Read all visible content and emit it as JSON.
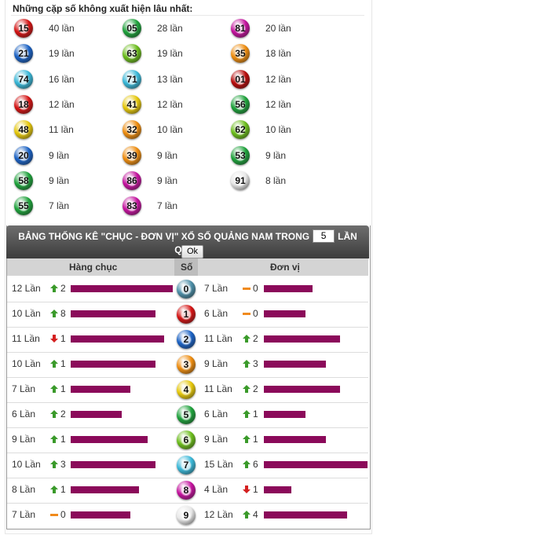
{
  "top": {
    "title": "Những cặp số không xuất hiện lâu nhất:",
    "items": [
      {
        "number": "15",
        "count": "40 lần",
        "color": "#d41414"
      },
      {
        "number": "05",
        "count": "28 lần",
        "color": "#1fa23c"
      },
      {
        "number": "81",
        "count": "20 lần",
        "color": "#c4139e"
      },
      {
        "number": "21",
        "count": "19 lần",
        "color": "#1b62c4"
      },
      {
        "number": "63",
        "count": "19 lần",
        "color": "#6cbd1c"
      },
      {
        "number": "35",
        "count": "18 lần",
        "color": "#ee8d10"
      },
      {
        "number": "74",
        "count": "16 lần",
        "color": "#3ab8d8"
      },
      {
        "number": "71",
        "count": "13 lần",
        "color": "#3ab8d8"
      },
      {
        "number": "01",
        "count": "12 lần",
        "color": "#b70b0b"
      },
      {
        "number": "18",
        "count": "12 lần",
        "color": "#d41414"
      },
      {
        "number": "41",
        "count": "12 lần",
        "color": "#e6c80c"
      },
      {
        "number": "56",
        "count": "12 lần",
        "color": "#1fa23c"
      },
      {
        "number": "48",
        "count": "11 lần",
        "color": "#e6c80c"
      },
      {
        "number": "32",
        "count": "10 lần",
        "color": "#ee8d10"
      },
      {
        "number": "62",
        "count": "10 lần",
        "color": "#6cbd1c"
      },
      {
        "number": "20",
        "count": "9 lần",
        "color": "#1b62c4"
      },
      {
        "number": "39",
        "count": "9 lần",
        "color": "#ee8d10"
      },
      {
        "number": "53",
        "count": "9 lần",
        "color": "#1fa23c"
      },
      {
        "number": "58",
        "count": "9 lần",
        "color": "#1fa23c"
      },
      {
        "number": "86",
        "count": "9 lần",
        "color": "#c4139e"
      },
      {
        "number": "91",
        "count": "8 lần",
        "color": "#e8e8e8"
      },
      {
        "number": "55",
        "count": "7 lần",
        "color": "#1fa23c"
      },
      {
        "number": "83",
        "count": "7 lần",
        "color": "#c4139e"
      }
    ]
  },
  "stats": {
    "title": "BẢNG THỐNG KÊ \"CHỤC - ĐƠN VỊ\" XỔ SỐ QUẢNG NAM TRONG",
    "draws": "5",
    "title_end": "LẦN QUAY",
    "button": "Ok",
    "columns": [
      "Hàng chục",
      "Số",
      "Đơn vị"
    ],
    "rows": [
      {
        "digit": "0",
        "color": "#4d8fa8",
        "chuc": {
          "count": 12,
          "label": "12 Lần",
          "trend": "up",
          "change": "2"
        },
        "donvi": {
          "count": 7,
          "label": "7 Lần",
          "trend": "flat",
          "change": "0"
        }
      },
      {
        "digit": "1",
        "color": "#d41414",
        "chuc": {
          "count": 10,
          "label": "10 Lần",
          "trend": "up",
          "change": "8"
        },
        "donvi": {
          "count": 6,
          "label": "6 Lần",
          "trend": "flat",
          "change": "0"
        }
      },
      {
        "digit": "2",
        "color": "#1b62c4",
        "chuc": {
          "count": 11,
          "label": "11 Lần",
          "trend": "down",
          "change": "1"
        },
        "donvi": {
          "count": 11,
          "label": "11 Lần",
          "trend": "up",
          "change": "2"
        }
      },
      {
        "digit": "3",
        "color": "#ee8d10",
        "chuc": {
          "count": 10,
          "label": "10 Lần",
          "trend": "up",
          "change": "1"
        },
        "donvi": {
          "count": 9,
          "label": "9 Lần",
          "trend": "up",
          "change": "3"
        }
      },
      {
        "digit": "4",
        "color": "#e6c80c",
        "chuc": {
          "count": 7,
          "label": "7 Lần",
          "trend": "up",
          "change": "1"
        },
        "donvi": {
          "count": 11,
          "label": "11 Lần",
          "trend": "up",
          "change": "2"
        }
      },
      {
        "digit": "5",
        "color": "#1fa23c",
        "chuc": {
          "count": 6,
          "label": "6 Lần",
          "trend": "up",
          "change": "2"
        },
        "donvi": {
          "count": 6,
          "label": "6 Lần",
          "trend": "up",
          "change": "1"
        }
      },
      {
        "digit": "6",
        "color": "#6cbd1c",
        "chuc": {
          "count": 9,
          "label": "9 Lần",
          "trend": "up",
          "change": "1"
        },
        "donvi": {
          "count": 9,
          "label": "9 Lần",
          "trend": "up",
          "change": "1"
        }
      },
      {
        "digit": "7",
        "color": "#3ab8d8",
        "chuc": {
          "count": 10,
          "label": "10 Lần",
          "trend": "up",
          "change": "3"
        },
        "donvi": {
          "count": 15,
          "label": "15 Lần",
          "trend": "up",
          "change": "6"
        }
      },
      {
        "digit": "8",
        "color": "#c4139e",
        "chuc": {
          "count": 8,
          "label": "8 Lần",
          "trend": "up",
          "change": "1"
        },
        "donvi": {
          "count": 4,
          "label": "4 Lần",
          "trend": "down",
          "change": "1"
        }
      },
      {
        "digit": "9",
        "color": "#e8e8e8",
        "chuc": {
          "count": 7,
          "label": "7 Lần",
          "trend": "flat",
          "change": "0"
        },
        "donvi": {
          "count": 12,
          "label": "12 Lần",
          "trend": "up",
          "change": "4"
        }
      }
    ]
  }
}
